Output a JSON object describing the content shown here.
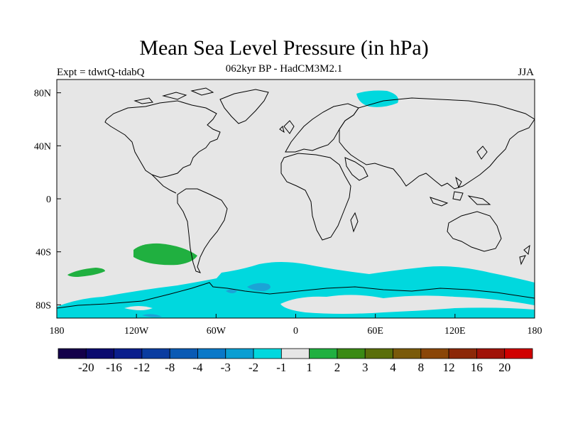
{
  "figure": {
    "title": "Mean Sea Level Pressure (in hPa)",
    "subtitle": "062kyr BP - HadCM3M2.1",
    "left_label": "Expt = tdwtQ-tdabQ",
    "right_label": "JJA"
  },
  "axes": {
    "lon_range": [
      -180,
      180
    ],
    "lat_range": [
      -90,
      90
    ],
    "x_ticks": [
      {
        "value": -180,
        "label": "180"
      },
      {
        "value": -120,
        "label": "120W"
      },
      {
        "value": -60,
        "label": "60W"
      },
      {
        "value": 0,
        "label": "0"
      },
      {
        "value": 60,
        "label": "60E"
      },
      {
        "value": 120,
        "label": "120E"
      },
      {
        "value": 180,
        "label": "180"
      }
    ],
    "y_ticks": [
      {
        "value": 80,
        "label": "80N"
      },
      {
        "value": 40,
        "label": "40N"
      },
      {
        "value": 0,
        "label": "0"
      },
      {
        "value": -40,
        "label": "40S"
      },
      {
        "value": -80,
        "label": "80S"
      }
    ]
  },
  "colors": {
    "background_field": "#e6e6e6",
    "coastline": "#000000",
    "cyan": "#00d8de",
    "mid_blue": "#1ba3d6",
    "green": "#20b040"
  },
  "colorbar": {
    "colors": [
      "#14004a",
      "#0a0a6e",
      "#0a1e8c",
      "#0a3ca0",
      "#0a5ab4",
      "#0a78c8",
      "#0a9ed2",
      "#00d8de",
      "#e6e6e6",
      "#20b040",
      "#3a8a14",
      "#5a6e0a",
      "#7a5a0a",
      "#8a4608",
      "#8c2808",
      "#a01208",
      "#d00000"
    ],
    "labels": [
      "-20",
      "-16",
      "-12",
      "-8",
      "-4",
      "-3",
      "-2",
      "-1",
      "1",
      "2",
      "3",
      "4",
      "8",
      "12",
      "16",
      "20"
    ]
  },
  "chart_data": {
    "type": "heatmap",
    "variable": "Mean Sea Level Pressure anomaly (hPa)",
    "title": "Mean Sea Level Pressure (in hPa)",
    "subtitle": "062kyr BP - HadCM3M2.1",
    "season": "JJA",
    "legend": "bottom",
    "levels": [
      -20,
      -16,
      -12,
      -8,
      -4,
      -3,
      -2,
      -1,
      1,
      2,
      3,
      4,
      8,
      12,
      16,
      20
    ],
    "regions": [
      {
        "level_range": [
          -2,
          -1
        ],
        "area": "Southern Ocean band",
        "lat": [
          -90,
          -50
        ],
        "lon": [
          -180,
          180
        ]
      },
      {
        "level_range": [
          -3,
          -2
        ],
        "area": "South Atlantic patches",
        "lat": [
          -65,
          -60
        ],
        "lon": [
          -60,
          0
        ]
      },
      {
        "level_range": [
          -2,
          -1
        ],
        "area": "Barents/Kara Sea",
        "lat": [
          76,
          82
        ],
        "lon": [
          45,
          75
        ]
      },
      {
        "level_range": [
          1,
          2
        ],
        "area": "South Pacific west of Chile",
        "lat": [
          -48,
          -34
        ],
        "lon": [
          -125,
          -75
        ]
      },
      {
        "level_range": [
          1,
          2
        ],
        "area": "South Pacific",
        "lat": [
          -58,
          -53
        ],
        "lon": [
          -170,
          -140
        ]
      }
    ]
  }
}
